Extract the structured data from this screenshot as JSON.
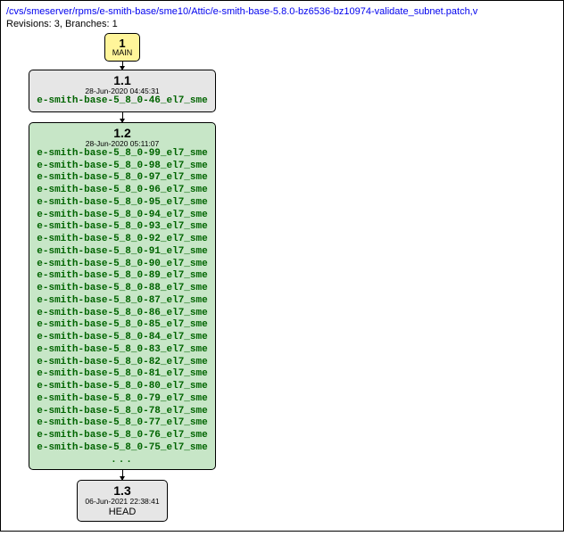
{
  "header": {
    "path": "/cvs/smeserver/rpms/e-smith-base/sme10/Attic/e-smith-base-5.8.0-bz6536-bz10974-validate_subnet.patch,v",
    "meta": "Revisions: 3, Branches: 1"
  },
  "branch": {
    "number": "1",
    "name": "MAIN",
    "bg": "#fff59a",
    "border": "#000000"
  },
  "nodes": {
    "r11": {
      "version": "1.1",
      "date": "28-Jun-2020 04:45:31",
      "bg": "#e6e6e6",
      "tags": [
        "e-smith-base-5_8_0-46_el7_sme"
      ]
    },
    "r12": {
      "version": "1.2",
      "date": "28-Jun-2020 05:11:07",
      "bg": "#c7e6c7",
      "tags": [
        "e-smith-base-5_8_0-99_el7_sme",
        "e-smith-base-5_8_0-98_el7_sme",
        "e-smith-base-5_8_0-97_el7_sme",
        "e-smith-base-5_8_0-96_el7_sme",
        "e-smith-base-5_8_0-95_el7_sme",
        "e-smith-base-5_8_0-94_el7_sme",
        "e-smith-base-5_8_0-93_el7_sme",
        "e-smith-base-5_8_0-92_el7_sme",
        "e-smith-base-5_8_0-91_el7_sme",
        "e-smith-base-5_8_0-90_el7_sme",
        "e-smith-base-5_8_0-89_el7_sme",
        "e-smith-base-5_8_0-88_el7_sme",
        "e-smith-base-5_8_0-87_el7_sme",
        "e-smith-base-5_8_0-86_el7_sme",
        "e-smith-base-5_8_0-85_el7_sme",
        "e-smith-base-5_8_0-84_el7_sme",
        "e-smith-base-5_8_0-83_el7_sme",
        "e-smith-base-5_8_0-82_el7_sme",
        "e-smith-base-5_8_0-81_el7_sme",
        "e-smith-base-5_8_0-80_el7_sme",
        "e-smith-base-5_8_0-79_el7_sme",
        "e-smith-base-5_8_0-78_el7_sme",
        "e-smith-base-5_8_0-77_el7_sme",
        "e-smith-base-5_8_0-76_el7_sme",
        "e-smith-base-5_8_0-75_el7_sme"
      ],
      "more": "..."
    },
    "r13": {
      "version": "1.3",
      "date": "06-Jun-2021 22:38:41",
      "bg": "#e6e6e6",
      "head": "HEAD"
    }
  },
  "colors": {
    "tag": "#006400",
    "link": "#0000ee",
    "border": "#000000",
    "page_bg": "#ffffff"
  }
}
